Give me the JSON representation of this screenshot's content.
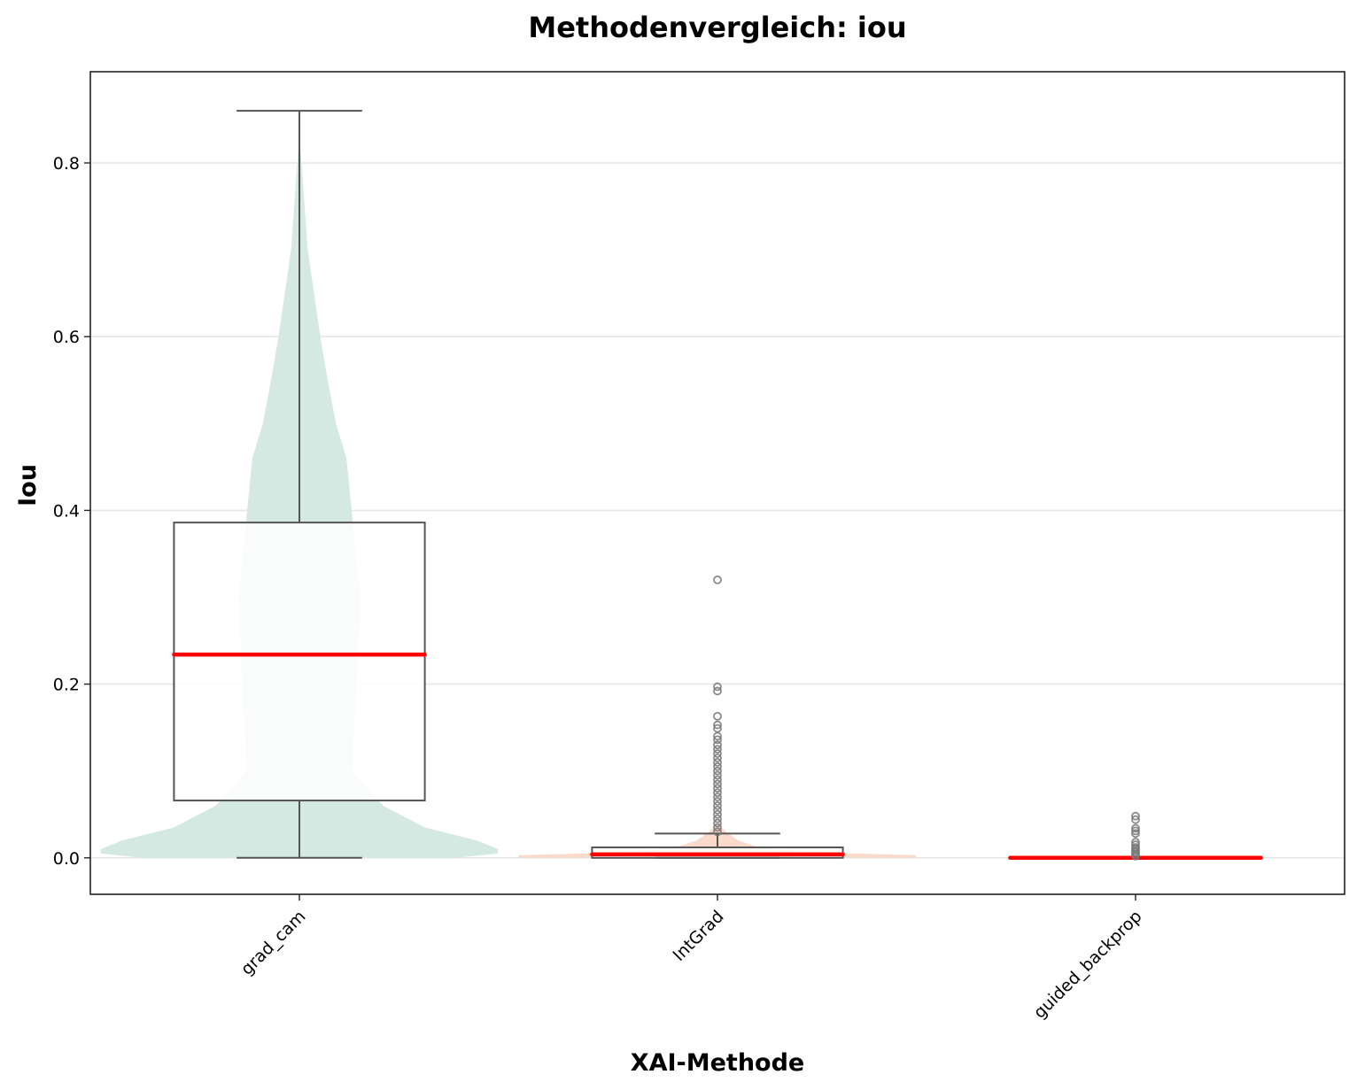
{
  "chart_data": {
    "type": "violin+box",
    "title": "Methodenvergleich: iou",
    "xlabel": "XAI-Methode",
    "ylabel": "Iou",
    "ylim": [
      -0.042,
      0.905
    ],
    "yticks": [
      "0.0",
      "0.2",
      "0.4",
      "0.6",
      "0.8"
    ],
    "ytick_values": [
      0.0,
      0.2,
      0.4,
      0.6,
      0.8
    ],
    "grid": "horizontal",
    "median_color": "#ff0000",
    "categories": [
      "grad_cam",
      "IntGrad",
      "guided_backprop"
    ],
    "series": [
      {
        "category": "grad_cam",
        "violin_color": "#d3e9e1",
        "box": {
          "whisker_low": 0.0,
          "q1": 0.066,
          "median": 0.234,
          "q3": 0.386,
          "whisker_high": 0.86
        },
        "violin_profile": [
          [
            0.0,
            0.15
          ],
          [
            0.005,
            0.19
          ],
          [
            0.01,
            0.19
          ],
          [
            0.02,
            0.17
          ],
          [
            0.035,
            0.12
          ],
          [
            0.06,
            0.08
          ],
          [
            0.1,
            0.05
          ],
          [
            0.2,
            0.055
          ],
          [
            0.3,
            0.058
          ],
          [
            0.4,
            0.05
          ],
          [
            0.46,
            0.045
          ],
          [
            0.5,
            0.035
          ],
          [
            0.55,
            0.027
          ],
          [
            0.6,
            0.02
          ],
          [
            0.65,
            0.014
          ],
          [
            0.7,
            0.008
          ],
          [
            0.75,
            0.005
          ],
          [
            0.8,
            0.002
          ],
          [
            0.83,
            0.0
          ]
        ],
        "outliers": []
      },
      {
        "category": "IntGrad",
        "violin_color": "#fbd9cb",
        "box": {
          "whisker_low": 0.0,
          "q1": 0.0,
          "median": 0.004,
          "q3": 0.012,
          "whisker_high": 0.028
        },
        "violin_profile": [
          [
            0.0,
            0.19
          ],
          [
            0.003,
            0.19
          ],
          [
            0.006,
            0.1
          ],
          [
            0.012,
            0.04
          ],
          [
            0.02,
            0.02
          ],
          [
            0.03,
            0.008
          ],
          [
            0.04,
            0.0
          ]
        ],
        "outliers": [
          0.32,
          0.197,
          0.192,
          0.163,
          0.153,
          0.149,
          0.14,
          0.136,
          0.13,
          0.125,
          0.12,
          0.115,
          0.11,
          0.105,
          0.1,
          0.095,
          0.09,
          0.085,
          0.08,
          0.075,
          0.07,
          0.065,
          0.06,
          0.055,
          0.05,
          0.045,
          0.04,
          0.035,
          0.03
        ]
      },
      {
        "category": "guided_backprop",
        "violin_color": "#e0e3f0",
        "box": {
          "whisker_low": 0.0,
          "q1": 0.0,
          "median": 0.0,
          "q3": 0.0,
          "whisker_high": 0.0
        },
        "violin_profile": [],
        "outliers": [
          0.048,
          0.044,
          0.034,
          0.031,
          0.028,
          0.018,
          0.015,
          0.012,
          0.01,
          0.008,
          0.006,
          0.004,
          0.002
        ]
      }
    ]
  }
}
